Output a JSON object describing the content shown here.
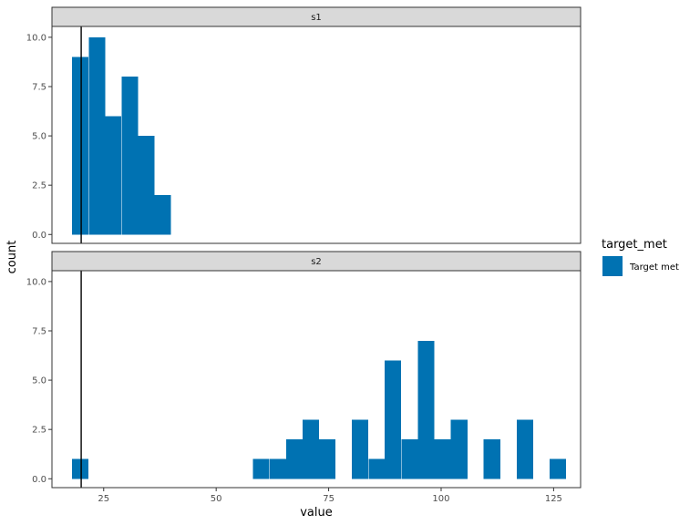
{
  "chart_data": {
    "type": "bar",
    "subtype": "faceted-histogram",
    "xlabel": "value",
    "ylabel": "count",
    "xlim": [
      13.5,
      131
    ],
    "ylim": [
      -0.45,
      10.55
    ],
    "x_ticks": [
      25,
      50,
      75,
      100,
      125
    ],
    "x_tick_labels": [
      "25",
      "50",
      "75",
      "100",
      "125"
    ],
    "y_ticks": [
      0,
      2.5,
      5,
      7.5,
      10
    ],
    "y_tick_labels": [
      "0.0",
      "2.5",
      "5.0",
      "7.5",
      "10.0"
    ],
    "bin_width": 3.66,
    "reference_line_x": 20,
    "fill_color": "#0072B2",
    "legend": {
      "title": "target_met",
      "position": "right",
      "entries": [
        {
          "label": "Target met",
          "color": "#0072B2"
        }
      ]
    },
    "facets": [
      {
        "name": "s1",
        "bins": [
          {
            "x": 19.8,
            "count": 9
          },
          {
            "x": 23.5,
            "count": 10
          },
          {
            "x": 27.1,
            "count": 6
          },
          {
            "x": 30.8,
            "count": 8
          },
          {
            "x": 34.5,
            "count": 5
          },
          {
            "x": 38.1,
            "count": 2
          }
        ]
      },
      {
        "name": "s2",
        "bins": [
          {
            "x": 19.8,
            "count": 1
          },
          {
            "x": 60.0,
            "count": 1
          },
          {
            "x": 63.7,
            "count": 1
          },
          {
            "x": 67.4,
            "count": 2
          },
          {
            "x": 71.0,
            "count": 3
          },
          {
            "x": 74.7,
            "count": 2
          },
          {
            "x": 82.0,
            "count": 3
          },
          {
            "x": 85.7,
            "count": 1
          },
          {
            "x": 89.3,
            "count": 6
          },
          {
            "x": 93.0,
            "count": 2
          },
          {
            "x": 96.7,
            "count": 7
          },
          {
            "x": 100.3,
            "count": 2
          },
          {
            "x": 104.0,
            "count": 3
          },
          {
            "x": 111.3,
            "count": 2
          },
          {
            "x": 118.6,
            "count": 3
          },
          {
            "x": 125.9,
            "count": 1
          }
        ]
      }
    ]
  }
}
